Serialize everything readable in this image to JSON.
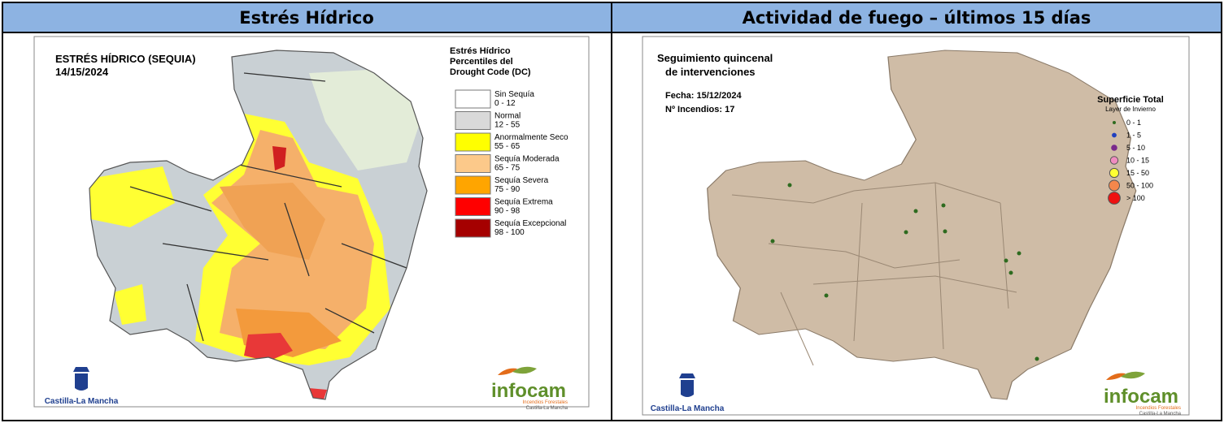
{
  "table": {
    "headers": [
      "Estrés Hídrico",
      "Actividad de fuego – últimos 15 días"
    ]
  },
  "left_map": {
    "title": "ESTRÉS HÍDRICO (SEQUIA)",
    "date": "14/15/2024",
    "legend": {
      "title": [
        "Estrés Hídrico",
        "Percentiles del",
        "Drought Code (DC)"
      ],
      "items": [
        {
          "label": "Sin Sequía",
          "range": "0 - 12",
          "color": "#ffffff"
        },
        {
          "label": "Normal",
          "range": "12 - 55",
          "color": "#d9d9d9"
        },
        {
          "label": "Anormalmente Seco",
          "range": "55 - 65",
          "color": "#ffff00"
        },
        {
          "label": "Sequía Moderada",
          "range": "65 - 75",
          "color": "#fcc98a"
        },
        {
          "label": "Sequía Severa",
          "range": "75 - 90",
          "color": "#ffa500"
        },
        {
          "label": "Sequía Extrema",
          "range": "90 - 98",
          "color": "#ff0000"
        },
        {
          "label": "Sequía Excepcional",
          "range": "98 - 100",
          "color": "#a50000"
        }
      ]
    },
    "logo_left": "Castilla-La Mancha",
    "logo_right": {
      "name": "infocam",
      "sub": [
        "Incendios Forestales",
        "Castilla-La Mancha"
      ]
    }
  },
  "right_map": {
    "title": [
      "Seguimiento quincenal",
      "de intervenciones"
    ],
    "date": "Fecha: 15/12/2024",
    "count": "Nº Incendios: 17",
    "legend": {
      "title": "Superficie Total",
      "subtitle": "Layer de Invierno",
      "items": [
        {
          "label": "0 - 1",
          "color": "#2e6b1f"
        },
        {
          "label": "1 - 5",
          "color": "#1f3fbf"
        },
        {
          "label": "5 - 10",
          "color": "#7a2a8c"
        },
        {
          "label": "10 - 15",
          "color": "#f08cc0"
        },
        {
          "label": "15 - 50",
          "color": "#ffff33"
        },
        {
          "label": "50 - 100",
          "color": "#f4874b"
        },
        {
          "label": "> 100",
          "color": "#ee1111"
        }
      ]
    },
    "logo_left": "Castilla-La Mancha",
    "logo_right": {
      "name": "infocam",
      "sub": [
        "Incendios Forestales",
        "Castilla-La Mancha"
      ]
    }
  }
}
